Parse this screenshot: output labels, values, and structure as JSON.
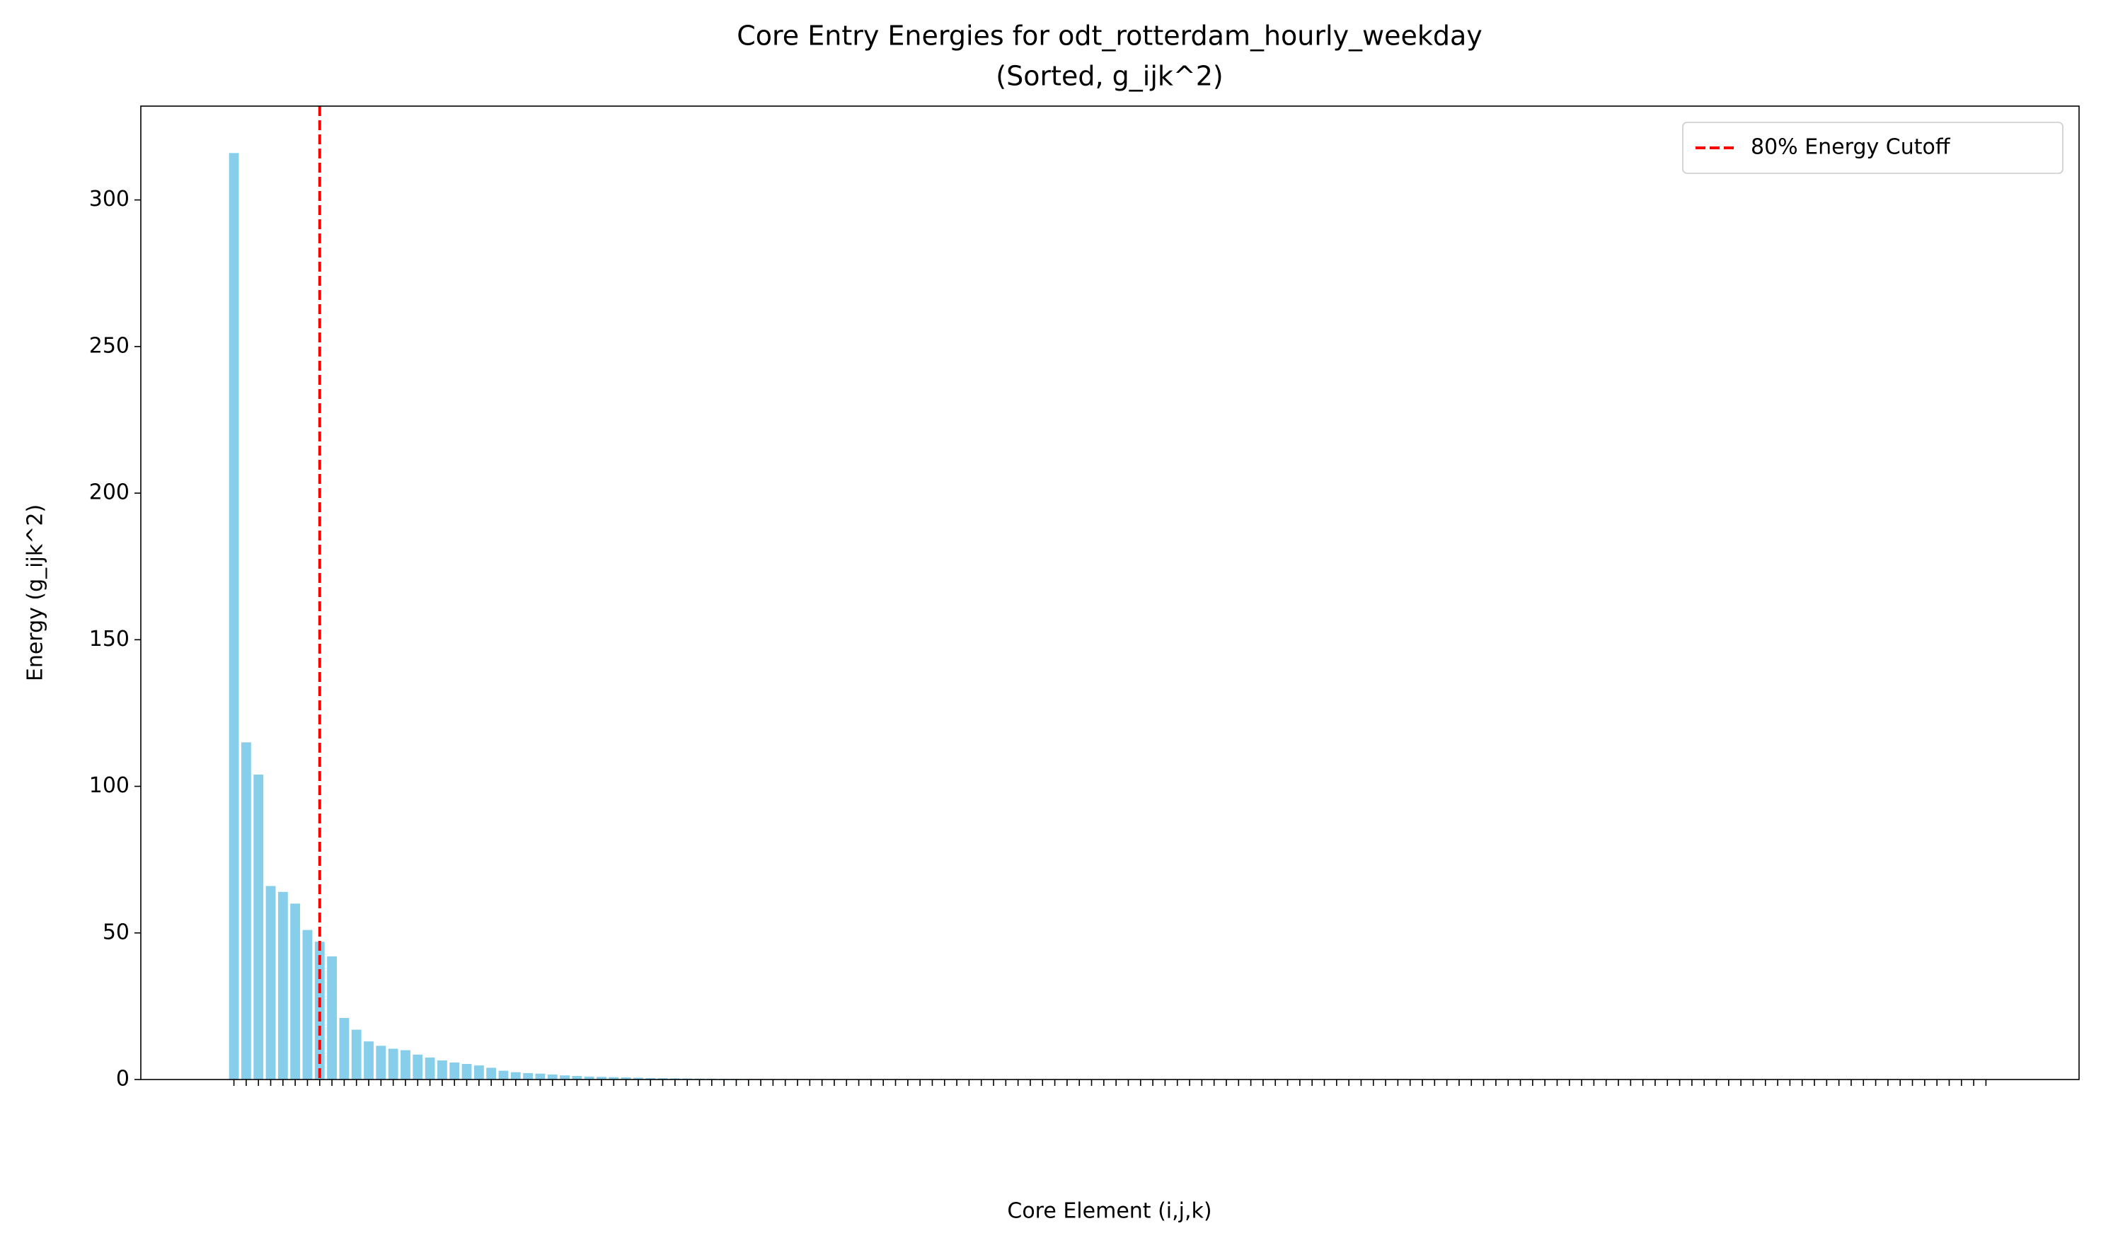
{
  "chart_data": {
    "type": "bar",
    "title": "Core Entry Energies for odt_rotterdam_hourly_weekday",
    "subtitle": "(Sorted, g_ijk^2)",
    "x_label": "Core Element (i,j,k)",
    "y_label": "Energy (g_ijk^2)",
    "color": "#87ceeb",
    "categories": [
      null,
      null,
      null,
      null,
      null,
      null,
      null,
      null,
      null,
      null,
      null,
      null,
      null,
      null,
      null,
      null,
      null,
      null,
      null,
      null,
      null,
      null,
      null,
      null,
      null,
      null,
      null,
      null,
      null,
      null,
      null,
      null,
      null,
      null,
      null,
      null,
      null,
      null,
      null,
      null,
      null,
      null,
      null,
      null,
      null,
      null,
      null,
      null,
      null,
      null,
      null,
      null,
      null,
      null,
      null,
      null,
      null,
      null,
      null,
      null,
      null,
      null,
      null,
      null,
      null,
      null,
      null,
      null,
      null,
      null,
      null,
      null,
      null,
      null,
      null,
      null,
      null,
      null,
      null,
      null,
      null,
      null,
      null,
      null,
      null,
      null,
      null,
      null,
      null,
      null,
      null,
      null,
      null,
      null,
      null,
      null,
      null,
      null,
      null,
      null,
      null,
      null,
      null,
      null,
      null,
      null,
      null,
      null,
      null,
      null,
      null,
      null,
      null,
      null,
      null,
      null,
      null,
      null,
      null,
      null,
      null,
      null,
      null,
      null,
      null,
      null,
      null,
      null,
      null,
      null,
      null,
      null,
      null,
      null,
      null,
      null,
      null,
      null,
      null,
      null,
      null,
      null,
      null,
      null
    ],
    "values": [
      316,
      115,
      104,
      66,
      64,
      60,
      51,
      47,
      42,
      21,
      17,
      13,
      11.5,
      10.5,
      10,
      8.5,
      7.5,
      6.5,
      5.8,
      5.3,
      4.8,
      4,
      3,
      2.5,
      2.2,
      2,
      1.7,
      1.4,
      1.2,
      1.0,
      0.9,
      0.8,
      0.7,
      0.6,
      0.5,
      0.45,
      0.4,
      0.35,
      0.3,
      0.28,
      0.25,
      0.22,
      0.2,
      0.18,
      0.16,
      0.15,
      0.14,
      0.13,
      0.12,
      0.11,
      0.1,
      0.09,
      0.08,
      0.08,
      0.07,
      0.07,
      0.06,
      0.06,
      0.05,
      0.05,
      0.04,
      0.04,
      0.04,
      0.04,
      0.04,
      0.04,
      0.04,
      0.04,
      0.04,
      0.04,
      0.03,
      0.03,
      0.03,
      0.03,
      0.03,
      0.03,
      0.03,
      0.03,
      0.03,
      0.03,
      0.02,
      0.02,
      0.02,
      0.02,
      0.02,
      0.02,
      0.02,
      0.02,
      0.02,
      0.02,
      0.02,
      0.02,
      0.02,
      0.02,
      0.02,
      0.02,
      0.02,
      0.02,
      0.02,
      0.02,
      0.01,
      0.01,
      0.01,
      0.01,
      0.01,
      0.01,
      0.01,
      0.01,
      0.01,
      0.01,
      0.01,
      0.01,
      0.01,
      0.01,
      0.01,
      0.01,
      0.01,
      0.01,
      0.01,
      0.01,
      0.01,
      0.01,
      0.01,
      0.01,
      0,
      0,
      0,
      0,
      0,
      0,
      0,
      0,
      0,
      0,
      0,
      0,
      0,
      0,
      0,
      0,
      0,
      0,
      0,
      0
    ],
    "xlim": [
      -7.6,
      150.6
    ],
    "ylim": [
      0,
      332
    ],
    "yticks": [
      0,
      50,
      100,
      150,
      200,
      250,
      300
    ],
    "cutoff": {
      "x": 7,
      "label": "80% Energy Cutoff",
      "color": "#ff0000"
    },
    "legend": "upper right"
  }
}
